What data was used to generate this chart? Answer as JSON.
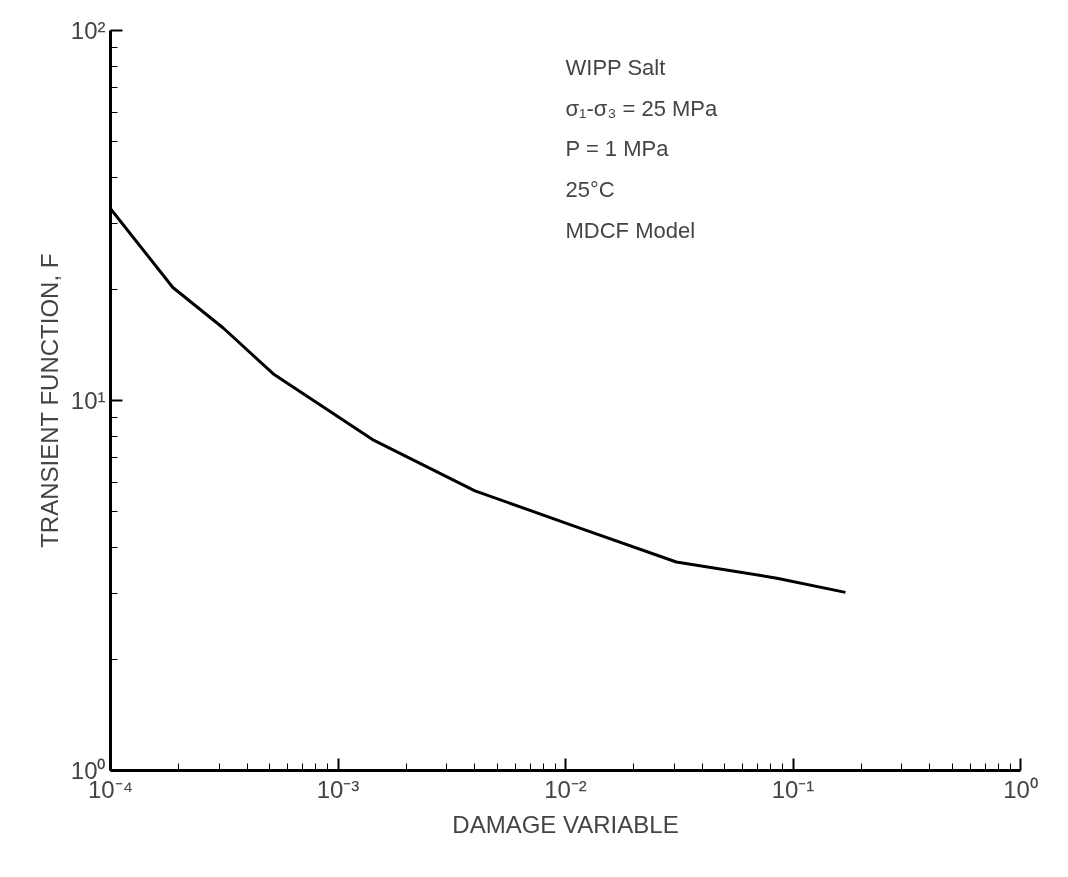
{
  "chart_data": {
    "type": "line",
    "xlabel": "DAMAGE VARIABLE",
    "ylabel": "TRANSIENT FUNCTION, F",
    "log": "xy",
    "grid": false,
    "marker": "none",
    "line_style": "solid",
    "xlim": [
      0.0001,
      1
    ],
    "ylim": [
      1,
      100
    ],
    "xticks": [
      {
        "value": 0.0001,
        "label": "10⁻⁴"
      },
      {
        "value": 0.001,
        "label": "10⁻³"
      },
      {
        "value": 0.01,
        "label": "10⁻²"
      },
      {
        "value": 0.1,
        "label": "10⁻¹"
      },
      {
        "value": 1,
        "label": "10⁰"
      }
    ],
    "yticks": [
      {
        "value": 1,
        "label": "10⁰"
      },
      {
        "value": 10,
        "label": "10¹"
      },
      {
        "value": 100,
        "label": "10²"
      }
    ],
    "series": [
      {
        "color": "#000000",
        "x": [
          0.0001,
          0.000188,
          0.000313,
          0.00052,
          0.00144,
          0.004,
          0.011,
          0.0307,
          0.085,
          0.17
        ],
        "values": [
          33,
          20.2,
          15.7,
          11.8,
          7.8,
          5.7,
          4.57,
          3.66,
          3.31,
          3.03
        ]
      }
    ],
    "annotations": [
      "WIPP Salt",
      "σ₁-σ₃ = 25 MPa",
      "P = 1 MPa",
      "25°C",
      "MDCF Model"
    ]
  }
}
